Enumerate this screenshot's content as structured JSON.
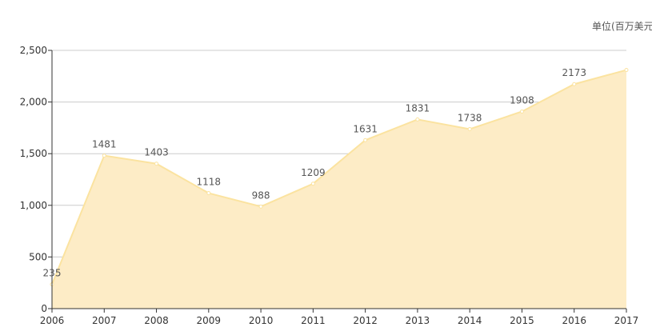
{
  "unit_label": "单位(百万美元",
  "colors": {
    "area_fill": "#fdecc6",
    "line": "#fbe3a0",
    "grid": "#cccccc",
    "axis": "#333333"
  },
  "chart_data": {
    "type": "area",
    "x": [
      "2006",
      "2007",
      "2008",
      "2009",
      "2010",
      "2011",
      "2012",
      "2013",
      "2014",
      "2015",
      "2016",
      "2017"
    ],
    "values": [
      235,
      1481,
      1403,
      1118,
      988,
      1209,
      1631,
      1831,
      1738,
      1908,
      2173,
      2310
    ],
    "data_labels": [
      "235",
      "1481",
      "1403",
      "1118",
      "988",
      "1209",
      "1631",
      "1831",
      "1738",
      "1908",
      "2173",
      ""
    ],
    "ylim": [
      0,
      2500
    ],
    "y_ticks": [
      0,
      500,
      1000,
      1500,
      2000,
      2500
    ],
    "y_tick_labels": [
      "0",
      "500",
      "1,000",
      "1,500",
      "2,000",
      "2,500"
    ],
    "grid": true,
    "title": "",
    "xlabel": "",
    "ylabel": ""
  }
}
